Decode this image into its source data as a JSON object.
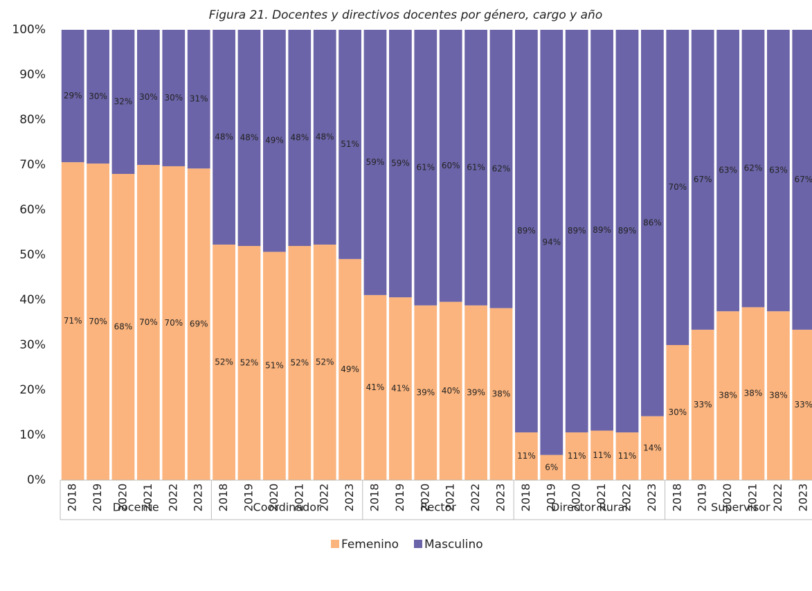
{
  "chart_data": {
    "type": "stacked_bar_100",
    "title": "Figura 21. Docentes y directivos docentes por género, cargo y año",
    "categories": [
      "2018",
      "2019",
      "2020",
      "2021",
      "2022",
      "2023",
      "2018",
      "2019",
      "2020",
      "2021",
      "2022",
      "2023",
      "2018",
      "2019",
      "2020",
      "2021",
      "2022",
      "2023",
      "2018",
      "2019",
      "2020",
      "2021",
      "2022",
      "2023",
      "2018",
      "2019",
      "2020",
      "2021",
      "2022",
      "2023"
    ],
    "groups": [
      "Docente",
      "Coordinador",
      "Rector",
      "Director Rural",
      "Supervisor"
    ],
    "series": [
      {
        "name": "Femenino",
        "color": "#fbb47d",
        "values": [
          70.6,
          70.3,
          68.0,
          70.0,
          69.7,
          69.2,
          52.3,
          52.0,
          50.7,
          52.0,
          52.3,
          49.1,
          41.1,
          40.6,
          38.8,
          39.6,
          38.8,
          38.2,
          10.6,
          5.6,
          10.6,
          11.0,
          10.6,
          14.2,
          30.0,
          33.4,
          37.5,
          38.4,
          37.5,
          33.4
        ],
        "value_labels": [
          "71%",
          "70%",
          "68%",
          "70%",
          "70%",
          "69%",
          "52%",
          "52%",
          "51%",
          "52%",
          "52%",
          "49%",
          "41%",
          "41%",
          "39%",
          "40%",
          "39%",
          "38%",
          "11%",
          "6%",
          "11%",
          "11%",
          "11%",
          "14%",
          "30%",
          "33%",
          "38%",
          "38%",
          "38%",
          "33%"
        ]
      },
      {
        "name": "Masculino",
        "color": "#6b64a8",
        "values": [
          29.4,
          29.7,
          32.0,
          30.0,
          30.3,
          30.8,
          47.7,
          48.0,
          49.3,
          48.0,
          47.7,
          50.9,
          58.9,
          59.4,
          61.2,
          60.4,
          61.2,
          61.8,
          89.4,
          94.4,
          89.4,
          89.0,
          89.4,
          85.8,
          70.0,
          66.6,
          62.5,
          61.6,
          62.5,
          66.6
        ],
        "value_labels": [
          "29%",
          "30%",
          "32%",
          "30%",
          "30%",
          "31%",
          "48%",
          "48%",
          "49%",
          "48%",
          "48%",
          "51%",
          "59%",
          "59%",
          "61%",
          "60%",
          "61%",
          "62%",
          "89%",
          "94%",
          "89%",
          "89%",
          "89%",
          "86%",
          "70%",
          "67%",
          "63%",
          "62%",
          "63%",
          "67%"
        ]
      }
    ],
    "ylim": [
      0,
      100
    ],
    "yticks": [
      {
        "value": 0,
        "label": "0%"
      },
      {
        "value": 10,
        "label": "10%"
      },
      {
        "value": 20,
        "label": "20%"
      },
      {
        "value": 30,
        "label": "30%"
      },
      {
        "value": 40,
        "label": "40%"
      },
      {
        "value": 50,
        "label": "50%"
      },
      {
        "value": 60,
        "label": "60%"
      },
      {
        "value": 70,
        "label": "70%"
      },
      {
        "value": 80,
        "label": "80%"
      },
      {
        "value": 90,
        "label": "90%"
      },
      {
        "value": 100,
        "label": "100%"
      }
    ],
    "grid": false,
    "legend": "bottom"
  }
}
